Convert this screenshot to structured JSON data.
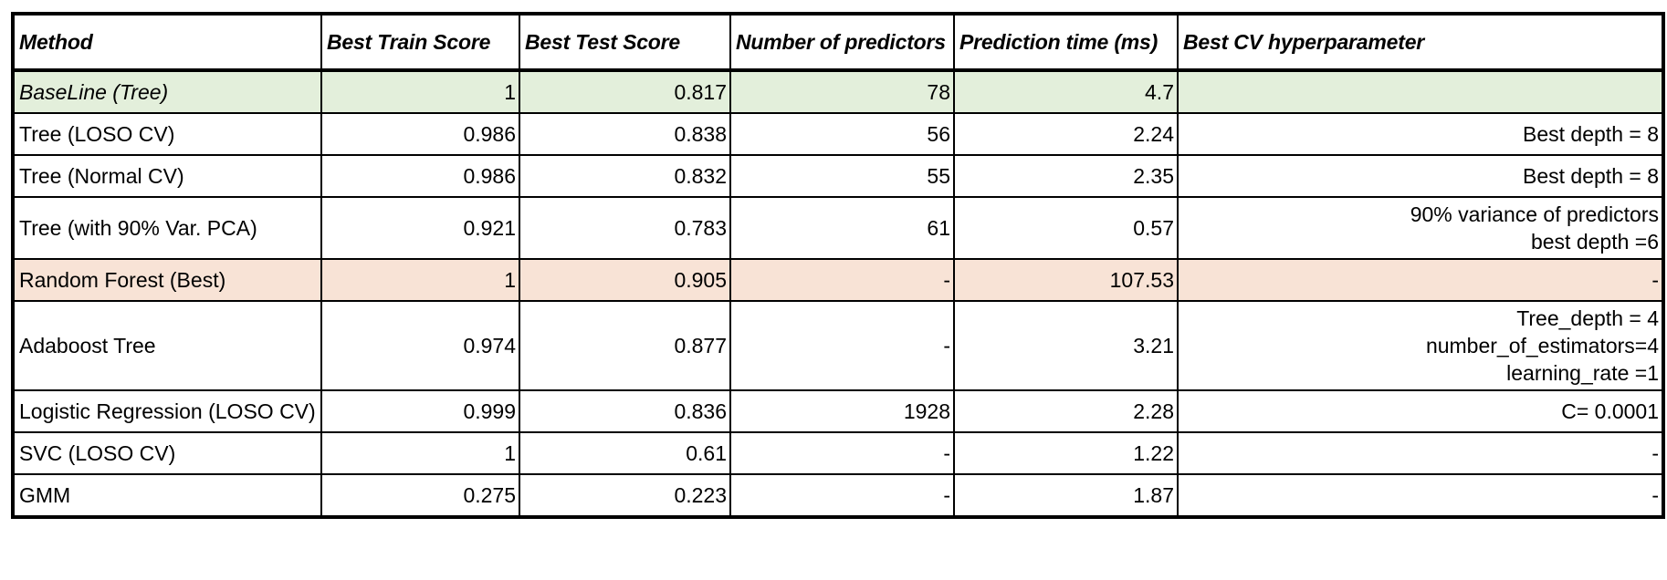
{
  "chart_data": {
    "type": "table",
    "columns": [
      "Method",
      "Best Train Score",
      "Best Test Score",
      "Number of predictors",
      "Prediction time (ms)",
      "Best CV hyperparameter"
    ],
    "rows": [
      {
        "method": "BaseLine (Tree)",
        "train": "1",
        "test": "0.817",
        "predictors": "78",
        "time": "4.7",
        "param": "",
        "highlight": "#e3efdb",
        "italic": true
      },
      {
        "method": "Tree (LOSO CV)",
        "train": "0.986",
        "test": "0.838",
        "predictors": "56",
        "time": "2.24",
        "param": "Best depth = 8"
      },
      {
        "method": "Tree (Normal CV)",
        "train": "0.986",
        "test": "0.832",
        "predictors": "55",
        "time": "2.35",
        "param": "Best depth = 8"
      },
      {
        "method": "Tree (with 90% Var. PCA)",
        "train": "0.921",
        "test": "0.783",
        "predictors": "61",
        "time": "0.57",
        "param": "90% variance of predictors\nbest depth =6"
      },
      {
        "method": "Random Forest (Best)",
        "train": "1",
        "test": "0.905",
        "predictors": "-",
        "time": "107.53",
        "param": "-",
        "highlight": "#f8e3d6"
      },
      {
        "method": "Adaboost Tree",
        "train": "0.974",
        "test": "0.877",
        "predictors": "-",
        "time": "3.21",
        "param": "Tree_depth = 4\nnumber_of_estimators=4\nlearning_rate =1"
      },
      {
        "method": "Logistic Regression (LOSO CV)",
        "train": "0.999",
        "test": "0.836",
        "predictors": "1928",
        "time": "2.28",
        "param": "C= 0.0001"
      },
      {
        "method": "SVC (LOSO CV)",
        "train": "1",
        "test": "0.61",
        "predictors": "-",
        "time": "1.22",
        "param": "-"
      },
      {
        "method": "GMM",
        "train": "0.275",
        "test": "0.223",
        "predictors": "-",
        "time": "1.87",
        "param": "-"
      }
    ]
  }
}
